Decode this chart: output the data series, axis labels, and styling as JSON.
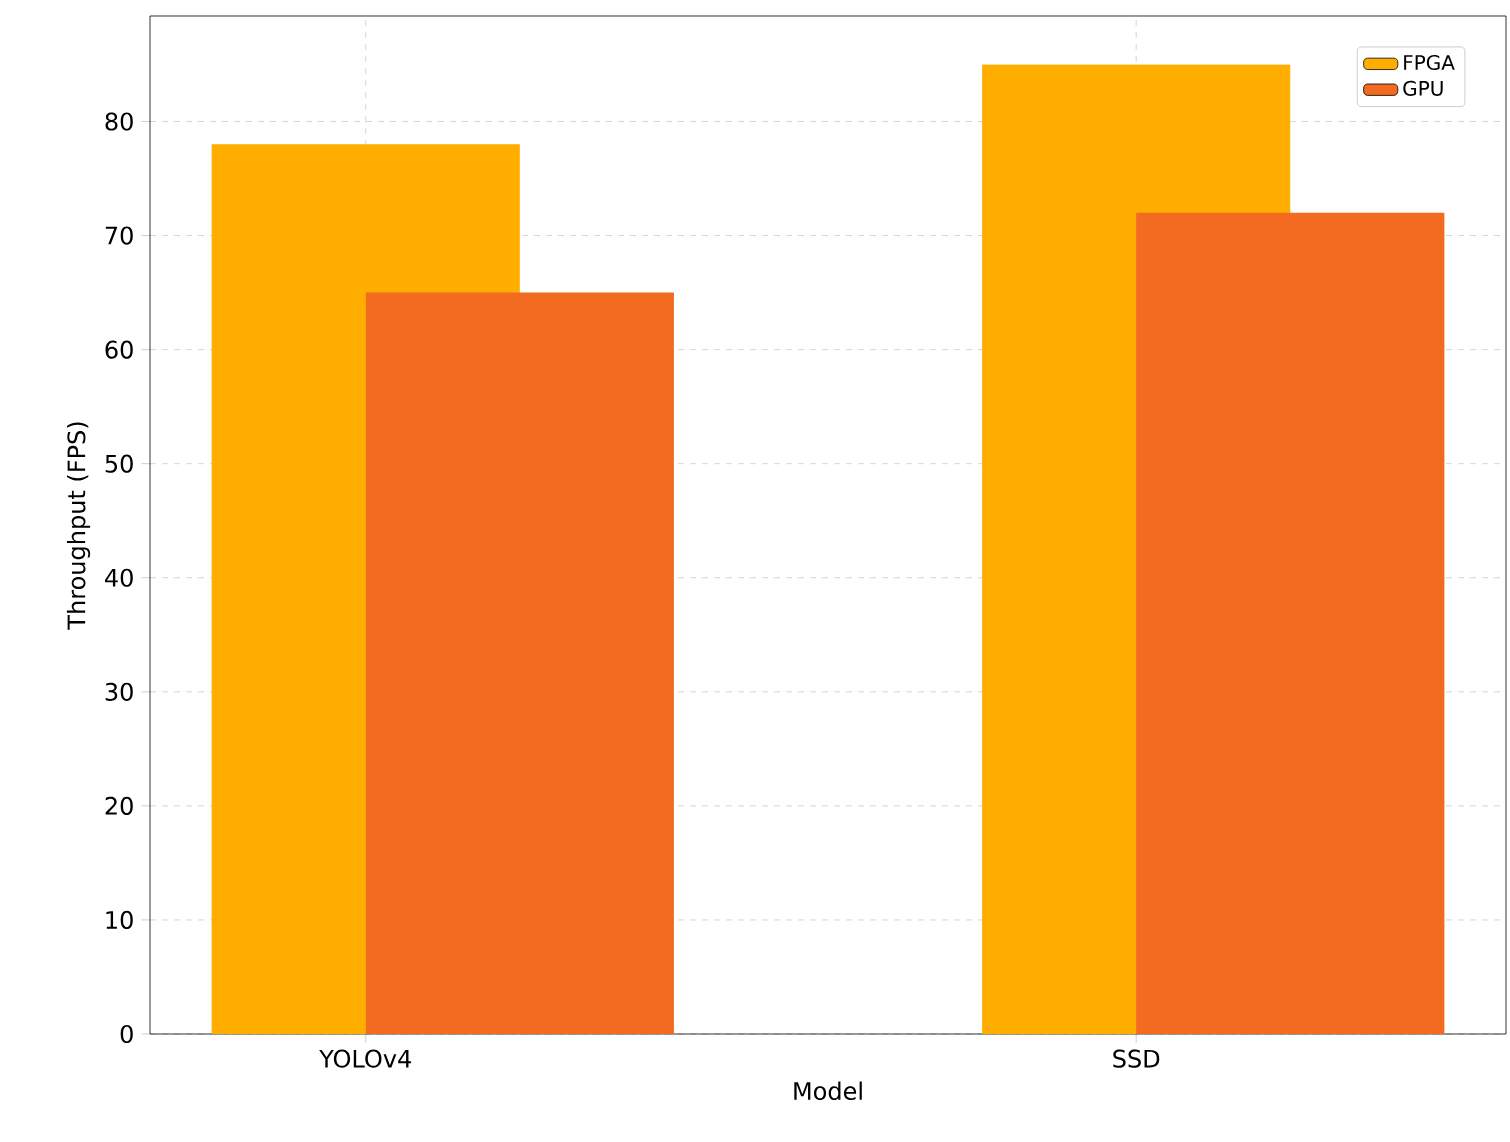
{
  "chart_data": {
    "type": "bar",
    "xlabel": "Model",
    "ylabel": "Throughput (FPS)",
    "categories": [
      "YOLOv4",
      "SSD"
    ],
    "series": [
      {
        "name": "FPGA",
        "color": "#ffae00",
        "values": [
          78,
          85
        ]
      },
      {
        "name": "GPU",
        "color": "#f26b21",
        "values": [
          65,
          72
        ]
      }
    ],
    "ylim": [
      0,
      89.25
    ],
    "yticks": [
      0,
      10,
      20,
      30,
      40,
      50,
      60,
      70,
      80
    ],
    "grid": true,
    "legend": "top right"
  }
}
